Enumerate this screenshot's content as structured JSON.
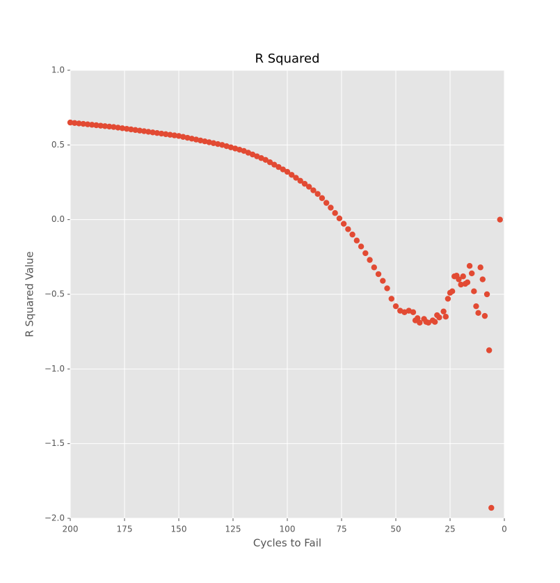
{
  "chart_data": {
    "type": "scatter",
    "title": "R Squared",
    "x_label": "Cycles to Fail",
    "y_label": "R Squared Value",
    "color": "#e24a33",
    "grid": true,
    "background": "#e5e5e5",
    "xlim": [
      200,
      0
    ],
    "xticks": [
      200,
      175,
      150,
      125,
      100,
      75,
      50,
      25,
      0
    ],
    "ylim": [
      -2.0,
      1.0
    ],
    "yticks": [
      {
        "value": -2.0,
        "label": "−2.0"
      },
      {
        "value": -1.5,
        "label": "−1.5"
      },
      {
        "value": -1.0,
        "label": "−1.0"
      },
      {
        "value": -0.5,
        "label": "−0.5"
      },
      {
        "value": 0.0,
        "label": "0.0"
      },
      {
        "value": 0.5,
        "label": "0.5"
      },
      {
        "value": 1.0,
        "label": "1.0"
      }
    ],
    "x": [
      200,
      198,
      196,
      194,
      192,
      190,
      188,
      186,
      184,
      182,
      180,
      178,
      176,
      174,
      172,
      170,
      168,
      166,
      164,
      162,
      160,
      158,
      156,
      154,
      152,
      150,
      148,
      146,
      144,
      142,
      140,
      138,
      136,
      134,
      132,
      130,
      128,
      126,
      124,
      122,
      120,
      118,
      116,
      114,
      112,
      110,
      108,
      106,
      104,
      102,
      100,
      98,
      96,
      94,
      92,
      90,
      88,
      86,
      84,
      82,
      80,
      78,
      76,
      74,
      72,
      70,
      68,
      66,
      64,
      62,
      60,
      58,
      56,
      54,
      52,
      50,
      48,
      46,
      44,
      42,
      41,
      40,
      39,
      37,
      36,
      35,
      33,
      32,
      31,
      30,
      28,
      27,
      26,
      25,
      24,
      23,
      22,
      21,
      20,
      19,
      18,
      17,
      16,
      15,
      14,
      13,
      12,
      11,
      10,
      9,
      8,
      7,
      6,
      2
    ],
    "values": [
      0.65,
      0.647,
      0.644,
      0.641,
      0.638,
      0.635,
      0.632,
      0.629,
      0.626,
      0.623,
      0.62,
      0.616,
      0.612,
      0.608,
      0.604,
      0.6,
      0.596,
      0.592,
      0.588,
      0.584,
      0.58,
      0.576,
      0.572,
      0.568,
      0.564,
      0.56,
      0.554,
      0.548,
      0.542,
      0.536,
      0.53,
      0.524,
      0.518,
      0.512,
      0.506,
      0.5,
      0.492,
      0.484,
      0.476,
      0.468,
      0.46,
      0.448,
      0.436,
      0.424,
      0.412,
      0.4,
      0.384,
      0.368,
      0.352,
      0.336,
      0.32,
      0.3,
      0.28,
      0.26,
      0.24,
      0.22,
      0.196,
      0.172,
      0.144,
      0.112,
      0.08,
      0.044,
      0.008,
      -0.028,
      -0.064,
      -0.1,
      -0.14,
      -0.18,
      -0.225,
      -0.27,
      -0.32,
      -0.365,
      -0.41,
      -0.46,
      -0.53,
      -0.58,
      -0.61,
      -0.62,
      -0.61,
      -0.62,
      -0.675,
      -0.66,
      -0.69,
      -0.665,
      -0.685,
      -0.69,
      -0.675,
      -0.685,
      -0.64,
      -0.655,
      -0.615,
      -0.65,
      -0.53,
      -0.49,
      -0.48,
      -0.38,
      -0.375,
      -0.4,
      -0.435,
      -0.38,
      -0.43,
      -0.42,
      -0.31,
      -0.36,
      -0.48,
      -0.58,
      -0.625,
      -0.32,
      -0.4,
      -0.645,
      -0.5,
      -0.875,
      -1.93,
      0.0
    ]
  }
}
